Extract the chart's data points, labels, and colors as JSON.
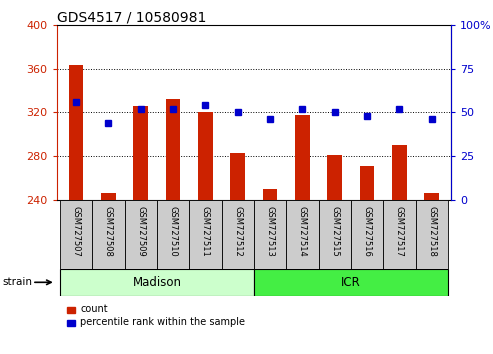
{
  "title": "GDS4517 / 10580981",
  "samples": [
    "GSM727507",
    "GSM727508",
    "GSM727509",
    "GSM727510",
    "GSM727511",
    "GSM727512",
    "GSM727513",
    "GSM727514",
    "GSM727515",
    "GSM727516",
    "GSM727517",
    "GSM727518"
  ],
  "counts": [
    363,
    246,
    326,
    332,
    320,
    283,
    250,
    318,
    281,
    271,
    290,
    246
  ],
  "percentiles": [
    56,
    44,
    52,
    52,
    54,
    50,
    46,
    52,
    50,
    48,
    52,
    46
  ],
  "ylim_left": [
    240,
    400
  ],
  "ylim_right": [
    0,
    100
  ],
  "yticks_left": [
    240,
    280,
    320,
    360,
    400
  ],
  "yticks_right": [
    0,
    25,
    50,
    75,
    100
  ],
  "bar_color": "#cc2200",
  "dot_color": "#0000cc",
  "axis_color_left": "#cc2200",
  "axis_color_right": "#0000cc",
  "groups": [
    {
      "label": "Madison",
      "start": 0,
      "end": 6,
      "color": "#ccffcc"
    },
    {
      "label": "ICR",
      "start": 6,
      "end": 12,
      "color": "#44ee44"
    }
  ],
  "strain_label": "strain",
  "legend": [
    {
      "label": "count",
      "color": "#cc2200"
    },
    {
      "label": "percentile rank within the sample",
      "color": "#0000cc"
    }
  ],
  "tick_label_bg": "#cccccc",
  "title_fontsize": 10,
  "bar_width": 0.45
}
